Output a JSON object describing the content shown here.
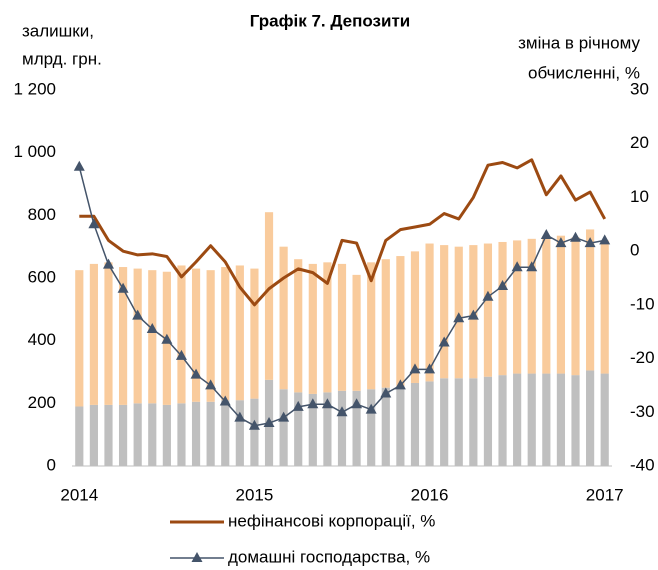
{
  "chart_data": {
    "type": "combo",
    "title": "Графік 7. Депозити",
    "ylabel": [
      "залишки,",
      "млрд. грн."
    ],
    "y2label": [
      "зміна в річному",
      "обчисленні, %"
    ],
    "categories": [
      "2014",
      null,
      null,
      null,
      null,
      null,
      null,
      null,
      null,
      null,
      null,
      null,
      "2015",
      null,
      null,
      null,
      null,
      null,
      null,
      null,
      null,
      null,
      null,
      null,
      "2016",
      null,
      null,
      null,
      null,
      null,
      null,
      null,
      null,
      null,
      null,
      null,
      "2017"
    ],
    "ylim": [
      0,
      1200
    ],
    "yticks": [
      0,
      200,
      400,
      600,
      800,
      {
        "value": 1000,
        "label": "1 000"
      },
      {
        "value": 1200,
        "label": "1 200"
      }
    ],
    "y2lim": [
      -40,
      30
    ],
    "y2ticks": [
      -40,
      -30,
      -20,
      -10,
      0,
      10,
      20,
      30
    ],
    "series": [
      {
        "type": "bar",
        "color": "#bfbfbf",
        "values": [
          190,
          195,
          195,
          195,
          200,
          200,
          195,
          200,
          205,
          205,
          210,
          210,
          215,
          275,
          245,
          235,
          230,
          235,
          240,
          240,
          245,
          250,
          255,
          265,
          270,
          280,
          280,
          280,
          285,
          290,
          295,
          295,
          295,
          295,
          290,
          305,
          295
        ]
      },
      {
        "type": "bar",
        "color": "#f9cb9c",
        "values": [
          435,
          450,
          455,
          440,
          430,
          425,
          425,
          440,
          425,
          420,
          425,
          430,
          415,
          535,
          455,
          425,
          415,
          415,
          405,
          370,
          405,
          410,
          415,
          420,
          440,
          425,
          420,
          425,
          425,
          425,
          425,
          430,
          435,
          440,
          440,
          450,
          425
        ]
      },
      {
        "type": "line",
        "name": "нефінансові корпорації, %",
        "color": "#9c4a12",
        "axis": "y2",
        "values": [
          6.5,
          6.5,
          2,
          0,
          -0.7,
          -0.5,
          -1,
          -4.8,
          -2,
          1,
          -2,
          -6.7,
          -10,
          -7,
          -5,
          -3.3,
          -4,
          -6,
          2,
          1.5,
          -5.5,
          2,
          4,
          4.5,
          5,
          7,
          6,
          10,
          16,
          16.5,
          15.5,
          17,
          10.5,
          14,
          9.5,
          11,
          6
        ]
      },
      {
        "type": "line",
        "name": "домашні господарства, %",
        "color": "#44546a",
        "axis": "y2",
        "marker": "triangle",
        "values": [
          15.7,
          5,
          -2.5,
          -7,
          -12,
          -14.5,
          -16.5,
          -19.5,
          -23,
          -25,
          -28,
          -31,
          -32.5,
          -32,
          -31,
          -29,
          -28.5,
          -28.5,
          -30,
          -28.5,
          -29.5,
          -26.5,
          -25,
          -22,
          -22,
          -17,
          -12.5,
          -12,
          -8.5,
          -6.5,
          -3,
          -3,
          3,
          1.5,
          2.5,
          1.5,
          2
        ]
      }
    ]
  }
}
